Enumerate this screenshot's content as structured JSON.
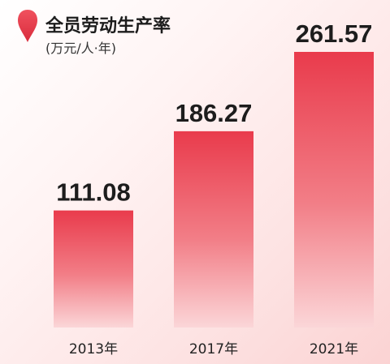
{
  "header": {
    "title": "全员劳动生产率",
    "unit": "(万元/人·年)",
    "icon": "map-pin-icon"
  },
  "colors": {
    "accent": "#e8404f",
    "bar_top": "#e93b4c",
    "bar_bottom": "#fbd6d8"
  },
  "chart_data": {
    "type": "bar",
    "categories": [
      "2013年",
      "2017年",
      "2021年"
    ],
    "values": [
      111.08,
      186.27,
      261.57
    ],
    "value_labels": [
      "111.08",
      "186.27",
      "261.57"
    ],
    "title": "全员劳动生产率",
    "ylabel": "(万元/人·年)",
    "ylim": [
      0,
      300
    ],
    "grid": false,
    "legend": "none"
  }
}
